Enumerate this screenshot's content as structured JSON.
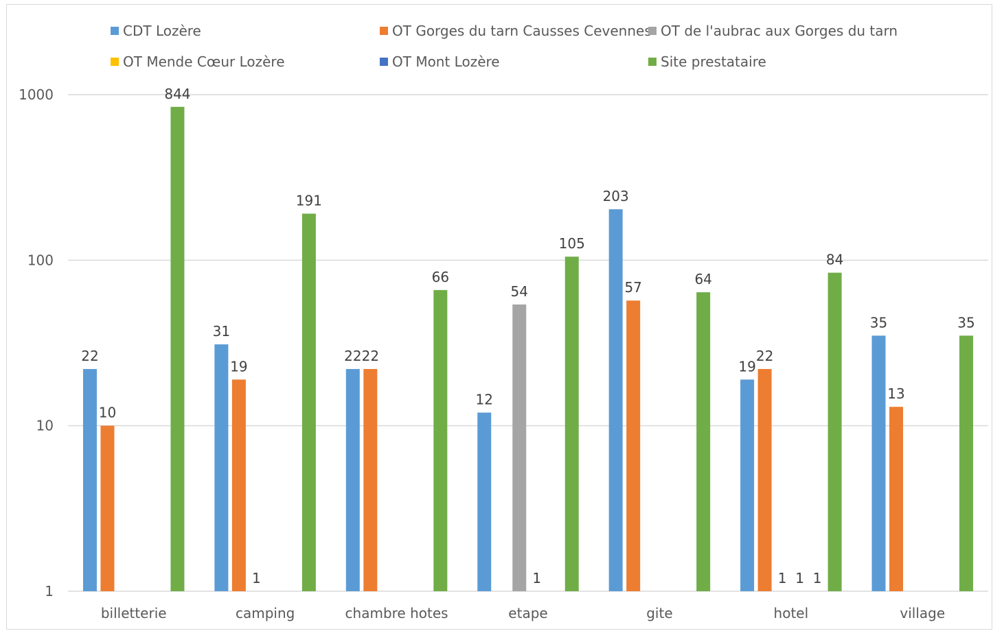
{
  "chart_data": {
    "type": "bar",
    "title": "",
    "xlabel": "",
    "ylabel": "",
    "y_scale": "log",
    "ylim": [
      1,
      1000
    ],
    "y_ticks": [
      "1",
      "10",
      "100",
      "1000"
    ],
    "grid": true,
    "legend_position": "top",
    "categories": [
      "billetterie",
      "camping",
      "chambre hotes",
      "etape",
      "gite",
      "hotel",
      "village"
    ],
    "series": [
      {
        "name": "CDT Lozère",
        "color": "#5b9bd5",
        "values": [
          22,
          31,
          22,
          12,
          203,
          19,
          35
        ]
      },
      {
        "name": "OT  Gorges du tarn Causses Cevennes",
        "color": "#ed7d31",
        "values": [
          10,
          19,
          22,
          null,
          57,
          22,
          13
        ]
      },
      {
        "name": "OT de l'aubrac aux Gorges du tarn",
        "color": "#a5a5a5",
        "values": [
          null,
          1,
          null,
          54,
          null,
          1,
          null
        ]
      },
      {
        "name": "OT Mende Cœur Lozère",
        "color": "#ffc000",
        "values": [
          null,
          null,
          null,
          1,
          null,
          1,
          null
        ]
      },
      {
        "name": "OT Mont Lozère",
        "color": "#4472c4",
        "values": [
          null,
          null,
          null,
          null,
          null,
          1,
          null
        ]
      },
      {
        "name": "Site prestataire",
        "color": "#70ad47",
        "values": [
          844,
          191,
          66,
          105,
          64,
          84,
          35
        ]
      }
    ]
  }
}
